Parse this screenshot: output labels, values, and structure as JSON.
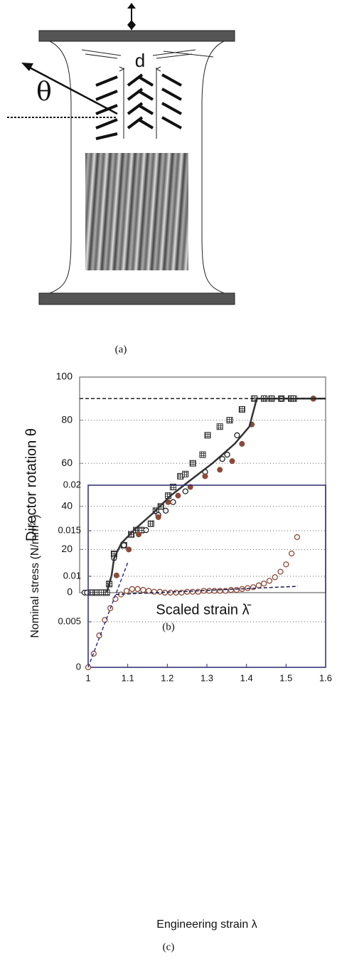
{
  "diagram": {
    "caption": "(a)",
    "theta_label": "θ",
    "spacing_label": "d"
  },
  "chart_data": [
    {
      "type": "scatter",
      "caption": "(b)",
      "ylabel": "Director rotation  θ",
      "xlabel": "Scaled strain λ̄",
      "xlim": [
        0,
        1
      ],
      "ylim": [
        0,
        100
      ],
      "yticks": [
        0,
        20,
        40,
        60,
        80,
        100
      ],
      "grid": true,
      "series": [
        {
          "marker": "hash-square",
          "color": "#222222",
          "x": [
            0.05,
            0.07,
            0.09,
            0.11,
            0.12,
            0.14,
            0.18,
            0.21,
            0.23,
            0.24,
            0.25,
            0.29,
            0.31,
            0.33,
            0.36,
            0.38,
            0.41,
            0.43,
            0.46,
            0.5,
            0.52,
            0.57,
            0.61,
            0.66,
            0.71,
            0.75,
            0.78,
            0.82,
            0.86,
            0.87
          ],
          "values": [
            0,
            0,
            0,
            0,
            4,
            18,
            22,
            27,
            29,
            29,
            29,
            32,
            38,
            40,
            45,
            49,
            54,
            55,
            60,
            64,
            73,
            77,
            80,
            85,
            90,
            90,
            90,
            90,
            90,
            90
          ]
        },
        {
          "marker": "open-circle",
          "color": "#222222",
          "x": [
            0.02,
            0.03,
            0.14,
            0.18,
            0.27,
            0.32,
            0.35,
            0.38,
            0.43,
            0.51,
            0.58,
            0.6,
            0.64,
            0.82,
            0.95
          ],
          "values": [
            0,
            0,
            16,
            22,
            29,
            36,
            38,
            42,
            47,
            56,
            62,
            64,
            73,
            90,
            90
          ]
        },
        {
          "marker": "filled-circle",
          "color": "#8b4a3a",
          "x": [
            0.15,
            0.2,
            0.24,
            0.32,
            0.36,
            0.4,
            0.45,
            0.51,
            0.57,
            0.62,
            0.66,
            0.7,
            0.95
          ],
          "values": [
            8,
            20,
            27,
            35,
            42,
            45,
            49,
            54,
            57,
            61,
            69,
            78,
            90
          ]
        },
        {
          "marker": "line",
          "style": "solid",
          "color": "#333333",
          "x": [
            0.11,
            0.13,
            0.14,
            0.17,
            0.23,
            0.3,
            0.37,
            0.46,
            0.54,
            0.63,
            0.69,
            0.72,
            1.0
          ],
          "values": [
            0,
            8,
            16,
            23,
            30,
            37,
            45,
            53,
            60,
            69,
            77,
            90,
            90
          ]
        },
        {
          "marker": "line",
          "style": "dashed",
          "color": "#222222",
          "x": [
            0,
            1
          ],
          "values": [
            90,
            90
          ]
        }
      ]
    },
    {
      "type": "scatter",
      "caption": "(c)",
      "ylabel": "Nominal stress  (N/mm² )",
      "xlabel": "Engineering strain λ",
      "xlim": [
        1,
        1.6
      ],
      "xticks": [
        1,
        1.1,
        1.2,
        1.3,
        1.4,
        1.5,
        1.6
      ],
      "ylim": [
        0,
        0.02
      ],
      "yticks": [
        0,
        0.005,
        0.01,
        0.015,
        0.02
      ],
      "grid": true,
      "series": [
        {
          "marker": "open-circle",
          "color": "#8b4a3a",
          "x": [
            1,
            1.014,
            1.028,
            1.042,
            1.056,
            1.069,
            1.083,
            1.097,
            1.111,
            1.125,
            1.139,
            1.153,
            1.167,
            1.181,
            1.194,
            1.208,
            1.222,
            1.236,
            1.25,
            1.264,
            1.278,
            1.292,
            1.306,
            1.319,
            1.333,
            1.347,
            1.361,
            1.375,
            1.389,
            1.403,
            1.417,
            1.431,
            1.444,
            1.458,
            1.472,
            1.486,
            1.5,
            1.514,
            1.528
          ],
          "values": [
            0,
            0.0015,
            0.0035,
            0.0052,
            0.0065,
            0.0075,
            0.008,
            0.0084,
            0.0086,
            0.0086,
            0.0085,
            0.0084,
            0.0083,
            0.0083,
            0.0082,
            0.0082,
            0.0082,
            0.0082,
            0.0083,
            0.0083,
            0.0083,
            0.0084,
            0.0084,
            0.0084,
            0.0084,
            0.0084,
            0.0085,
            0.0085,
            0.0086,
            0.0087,
            0.0088,
            0.009,
            0.0092,
            0.0095,
            0.0099,
            0.0105,
            0.0113,
            0.0125,
            0.0143
          ]
        },
        {
          "marker": "line",
          "style": "dashed",
          "color": "#33337a",
          "x": [
            1,
            1.1
          ],
          "values": [
            0,
            0.0115
          ]
        },
        {
          "marker": "line",
          "style": "dashed",
          "color": "#1a1a4a",
          "x": [
            1.07,
            1.53
          ],
          "values": [
            0.008,
            0.0089
          ]
        }
      ]
    }
  ]
}
